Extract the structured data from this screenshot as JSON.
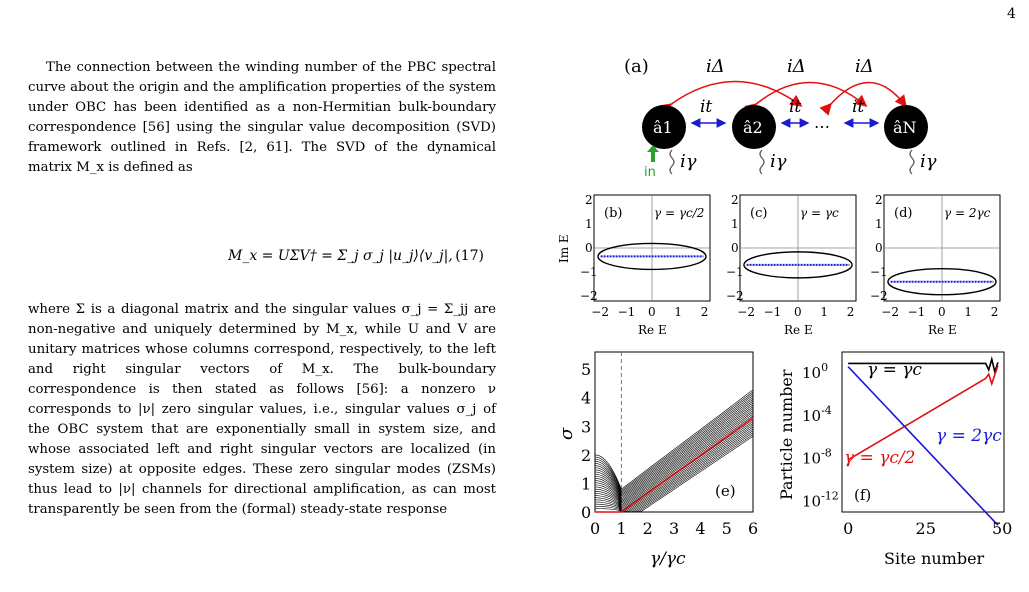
{
  "page_number": "4",
  "para1": "The connection between the winding number of the PBC spectral curve about the origin and the amplification properties of the system under OBC has been identified as a non-Hermitian bulk-boundary correspondence [56] using the singular value decomposition (SVD) framework outlined in Refs. [2, 61]. The SVD of the dynamical matrix M_x is defined as",
  "equation": "M_x = UΣV† = Σ_j σ_j |u_j⟩⟨v_j|,",
  "equation_number": "(17)",
  "para2": "where Σ is a diagonal matrix and the singular values σ_j = Σ_jj are non-negative and uniquely determined by M_x, while U and V are unitary matrices whose columns correspond, respectively, to the left and right singular vectors of M_x. The bulk-boundary correspondence is then stated as follows [56]: a nonzero ν corresponds to |ν| zero singular values, i.e., singular values σ_j of the OBC system that are exponentially small in system size, and whose associated left and right singular vectors are localized (in system size) at opposite edges. These zero singular modes (ZSMs) thus lead to |ν| channels for directional amplification, as can most transparently be seen from the (formal) steady-state response",
  "figure": {
    "panel_a": {
      "label": "(a)",
      "coupling_labels": [
        "iΔ",
        "iΔ",
        "iΔ"
      ],
      "hopping_labels": [
        "it",
        "it",
        "it"
      ],
      "sites": [
        "â1",
        "â2",
        "âN"
      ],
      "ellipsis": "…",
      "loss_label": "iγ",
      "input_label": "in"
    },
    "panels_bcd": {
      "y_axis_label": "Im E",
      "x_axis_label": "Re E",
      "x_ticks": [
        "−2",
        "−1",
        "0",
        "1",
        "2"
      ],
      "y_ticks": [
        "2",
        "1",
        "0",
        "−1",
        "−2"
      ],
      "panels": [
        {
          "label": "(b)",
          "condition": "γ = γc/2",
          "center_im": -0.35
        },
        {
          "label": "(c)",
          "condition": "γ = γc",
          "center_im": -0.7
        },
        {
          "label": "(d)",
          "condition": "γ = 2γc",
          "center_im": -1.4
        }
      ]
    },
    "panel_e": {
      "label": "(e)",
      "x_label": "γ/γc",
      "y_label": "σ",
      "x_ticks": [
        "0",
        "1",
        "2",
        "3",
        "4",
        "5",
        "6"
      ],
      "y_ticks": [
        "0",
        "1",
        "2",
        "3",
        "4",
        "5"
      ]
    },
    "panel_f": {
      "label": "(f)",
      "x_label": "Site number",
      "y_label": "Particle number",
      "x_ticks": [
        "0",
        "25",
        "50"
      ],
      "y_ticks": [
        "10^0",
        "10^-4",
        "10^-8",
        "10^-12"
      ],
      "curves": [
        {
          "name": "γ = γc",
          "color": "#000000"
        },
        {
          "name": "γ = γc/2",
          "color": "#e00000"
        },
        {
          "name": "γ = 2γc",
          "color": "#0000e0"
        }
      ]
    }
  },
  "colors": {
    "blue": "#1a1ad0",
    "red": "#e01010",
    "green": "#2ca02c"
  }
}
